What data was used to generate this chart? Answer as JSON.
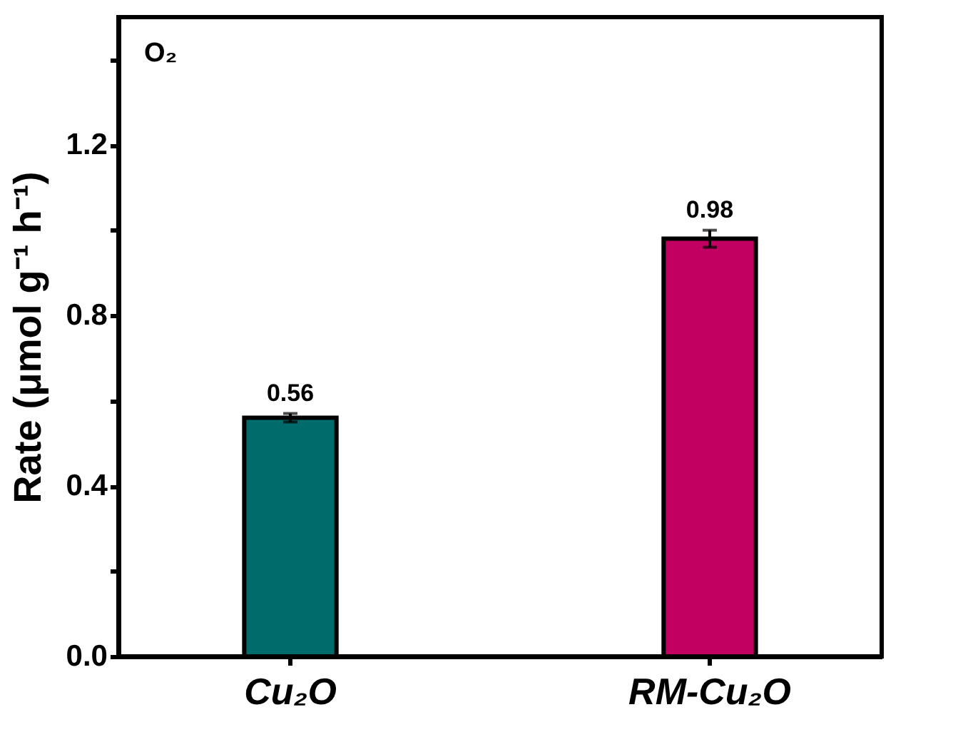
{
  "chart_data": {
    "type": "bar",
    "ylabel": "Rate (μmol g⁻¹ h⁻¹)",
    "annotations": [
      "O₂"
    ],
    "categories": [
      "Cu₂O",
      "RM-Cu₂O"
    ],
    "values": [
      0.56,
      0.98
    ],
    "colors": [
      "#006b6b",
      "#c20062"
    ],
    "errors": [
      0.01,
      0.02
    ],
    "data_labels": true,
    "ylim": [
      0,
      1.5
    ],
    "yticks": [
      {
        "value": 0,
        "label": "0.0"
      },
      {
        "value": 0.2,
        "label": null
      },
      {
        "value": 0.4,
        "label": "0.4"
      },
      {
        "value": 0.6,
        "label": null
      },
      {
        "value": 0.8,
        "label": "0.8"
      },
      {
        "value": 1.0,
        "label": null
      },
      {
        "value": 1.2,
        "label": "1.2"
      },
      {
        "value": 1.4,
        "label": null
      }
    ],
    "grid": false,
    "legend": false
  }
}
